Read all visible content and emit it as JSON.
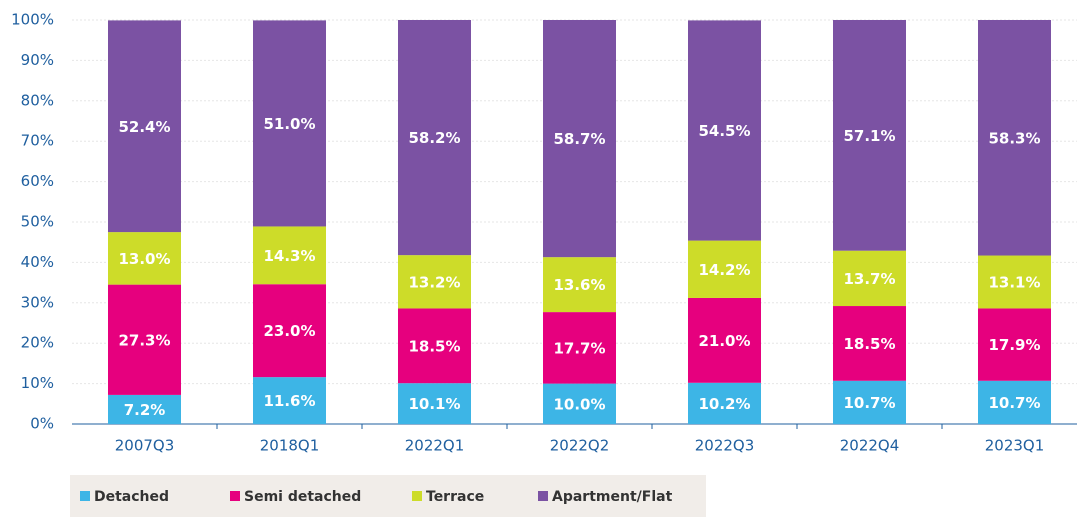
{
  "chart_data": {
    "type": "stacked_bar",
    "categories": [
      "2007Q3",
      "2018Q1",
      "2022Q1",
      "2022Q2",
      "2022Q3",
      "2022Q4",
      "2023Q1"
    ],
    "series": [
      {
        "name": "Detached",
        "color": "#3db5e6",
        "values": [
          7.2,
          11.6,
          10.1,
          10.0,
          10.2,
          10.7,
          10.7
        ],
        "value_labels": [
          "7.2%",
          "11.6%",
          "10.1%",
          "10.0%",
          "10.2%",
          "10.7%",
          "10.7%"
        ]
      },
      {
        "name": "Semi detached",
        "color": "#e6007e",
        "values": [
          27.3,
          23.0,
          18.5,
          17.7,
          21.0,
          18.5,
          17.9
        ],
        "value_labels": [
          "27.3%",
          "23.0%",
          "18.5%",
          "17.7%",
          "21.0%",
          "18.5%",
          "17.9%"
        ]
      },
      {
        "name": "Terrace",
        "color": "#cddc29",
        "values": [
          13.0,
          14.3,
          13.2,
          13.6,
          14.2,
          13.7,
          13.1
        ],
        "value_labels": [
          "13.0%",
          "14.3%",
          "13.2%",
          "13.6%",
          "14.2%",
          "13.7%",
          "13.1%"
        ]
      },
      {
        "name": "Apartment/Flat",
        "color": "#7b52a3",
        "values": [
          52.4,
          51.0,
          58.2,
          58.7,
          54.5,
          57.1,
          58.3
        ],
        "value_labels": [
          "52.4%",
          "51.0%",
          "58.2%",
          "58.7%",
          "54.5%",
          "57.1%",
          "58.3%"
        ]
      }
    ],
    "ylim": [
      0,
      100
    ],
    "yticks": [
      {
        "value": 0,
        "label": "0%"
      },
      {
        "value": 10,
        "label": "10%"
      },
      {
        "value": 20,
        "label": "20%"
      },
      {
        "value": 30,
        "label": "30%"
      },
      {
        "value": 40,
        "label": "40%"
      },
      {
        "value": 50,
        "label": "50%"
      },
      {
        "value": 60,
        "label": "60%"
      },
      {
        "value": 70,
        "label": "70%"
      },
      {
        "value": 80,
        "label": "80%"
      },
      {
        "value": 90,
        "label": "90%"
      },
      {
        "value": 100,
        "label": "100%"
      }
    ],
    "grid": true,
    "legend": "bottom-left"
  }
}
